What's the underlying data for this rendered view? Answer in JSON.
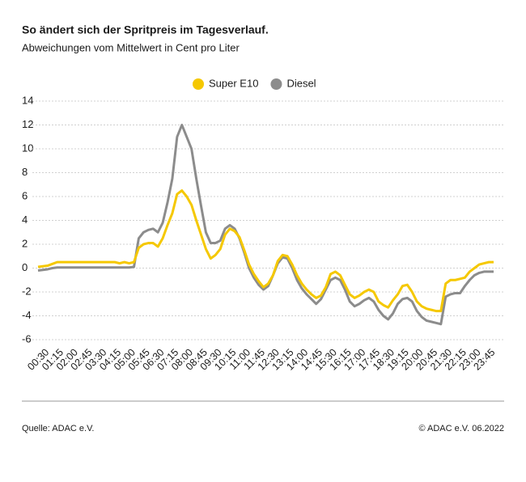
{
  "chart_data": {
    "type": "line",
    "title": "So ändert sich der Spritpreis im Tagesverlauf.",
    "subtitle": "Abweichungen vom Mittelwert in Cent pro Liter",
    "source": "Quelle: ADAC e.V.",
    "copyright": "© ADAC e.V. 06.2022",
    "categories": [
      null,
      null,
      "00:30",
      null,
      null,
      "01:15",
      null,
      null,
      "02:00",
      null,
      null,
      "02:45",
      null,
      null,
      "03:30",
      null,
      null,
      "04:15",
      null,
      null,
      "05:00",
      null,
      null,
      "05:45",
      null,
      null,
      "06:30",
      null,
      null,
      "07:15",
      null,
      null,
      "08:00",
      null,
      null,
      "08:45",
      null,
      null,
      "09:30",
      null,
      null,
      "10:15",
      null,
      null,
      "11:00",
      null,
      null,
      "11:45",
      null,
      null,
      "12:30",
      null,
      null,
      "13:15",
      null,
      null,
      "14:00",
      null,
      null,
      "14:45",
      null,
      null,
      "15:30",
      null,
      null,
      "16:15",
      null,
      null,
      "17:00",
      null,
      null,
      "17:45",
      null,
      null,
      "18:30",
      null,
      null,
      "19:15",
      null,
      null,
      "20:00",
      null,
      null,
      "20:45",
      null,
      null,
      "21:30",
      null,
      null,
      "22:15",
      null,
      null,
      "23:00",
      null,
      null,
      "23:45"
    ],
    "series": [
      {
        "name": "Super E10",
        "color": "#f5c800",
        "values": [
          0.1,
          0.15,
          0.2,
          0.35,
          0.5,
          0.5,
          0.5,
          0.5,
          0.5,
          0.5,
          0.5,
          0.5,
          0.5,
          0.5,
          0.5,
          0.5,
          0.5,
          0.4,
          0.5,
          0.4,
          0.5,
          1.7,
          2.0,
          2.1,
          2.1,
          1.8,
          2.5,
          3.6,
          4.6,
          6.2,
          6.5,
          6.0,
          5.3,
          4.0,
          2.8,
          1.6,
          0.8,
          1.1,
          1.6,
          2.8,
          3.3,
          3.1,
          2.6,
          1.5,
          0.3,
          -0.5,
          -1.1,
          -1.6,
          -1.3,
          -0.6,
          0.6,
          1.1,
          1.0,
          0.3,
          -0.6,
          -1.3,
          -1.8,
          -2.2,
          -2.5,
          -2.3,
          -1.6,
          -0.5,
          -0.3,
          -0.6,
          -1.4,
          -2.2,
          -2.5,
          -2.3,
          -2.0,
          -1.8,
          -2.0,
          -2.8,
          -3.1,
          -3.3,
          -2.7,
          -2.2,
          -1.5,
          -1.4,
          -2.0,
          -2.8,
          -3.2,
          -3.4,
          -3.5,
          -3.6,
          -3.6,
          -1.3,
          -1.0,
          -1.0,
          -0.9,
          -0.8,
          -0.3,
          0.0,
          0.3,
          0.4,
          0.5,
          0.5
        ]
      },
      {
        "name": "Diesel",
        "color": "#8c8c8c",
        "values": [
          -0.2,
          -0.15,
          -0.1,
          0,
          0.05,
          0.05,
          0.05,
          0.05,
          0.05,
          0.05,
          0.05,
          0.05,
          0.05,
          0.05,
          0.05,
          0.05,
          0.05,
          0.05,
          0.05,
          0.05,
          0.1,
          2.5,
          3.0,
          3.2,
          3.3,
          3.0,
          3.8,
          5.5,
          7.5,
          11.0,
          12.0,
          11.0,
          10.0,
          7.5,
          5.2,
          3.0,
          2.1,
          2.1,
          2.3,
          3.3,
          3.6,
          3.3,
          2.5,
          1.3,
          0.0,
          -0.8,
          -1.4,
          -1.8,
          -1.5,
          -0.6,
          0.4,
          0.9,
          0.8,
          0.0,
          -1.0,
          -1.7,
          -2.2,
          -2.6,
          -3.0,
          -2.6,
          -1.8,
          -1.0,
          -0.8,
          -1.0,
          -1.8,
          -2.8,
          -3.2,
          -3.0,
          -2.7,
          -2.5,
          -2.8,
          -3.5,
          -4.0,
          -4.3,
          -3.8,
          -3.0,
          -2.6,
          -2.5,
          -2.8,
          -3.6,
          -4.1,
          -4.4,
          -4.5,
          -4.6,
          -4.7,
          -2.4,
          -2.2,
          -2.1,
          -2.1,
          -1.5,
          -1.0,
          -0.6,
          -0.4,
          -0.3,
          -0.3,
          -0.3
        ]
      }
    ],
    "ylim": [
      -6,
      14
    ],
    "yticks": [
      -6,
      -4,
      -2,
      0,
      2,
      4,
      6,
      8,
      10,
      12,
      14
    ],
    "grid": true,
    "legend": "top"
  }
}
